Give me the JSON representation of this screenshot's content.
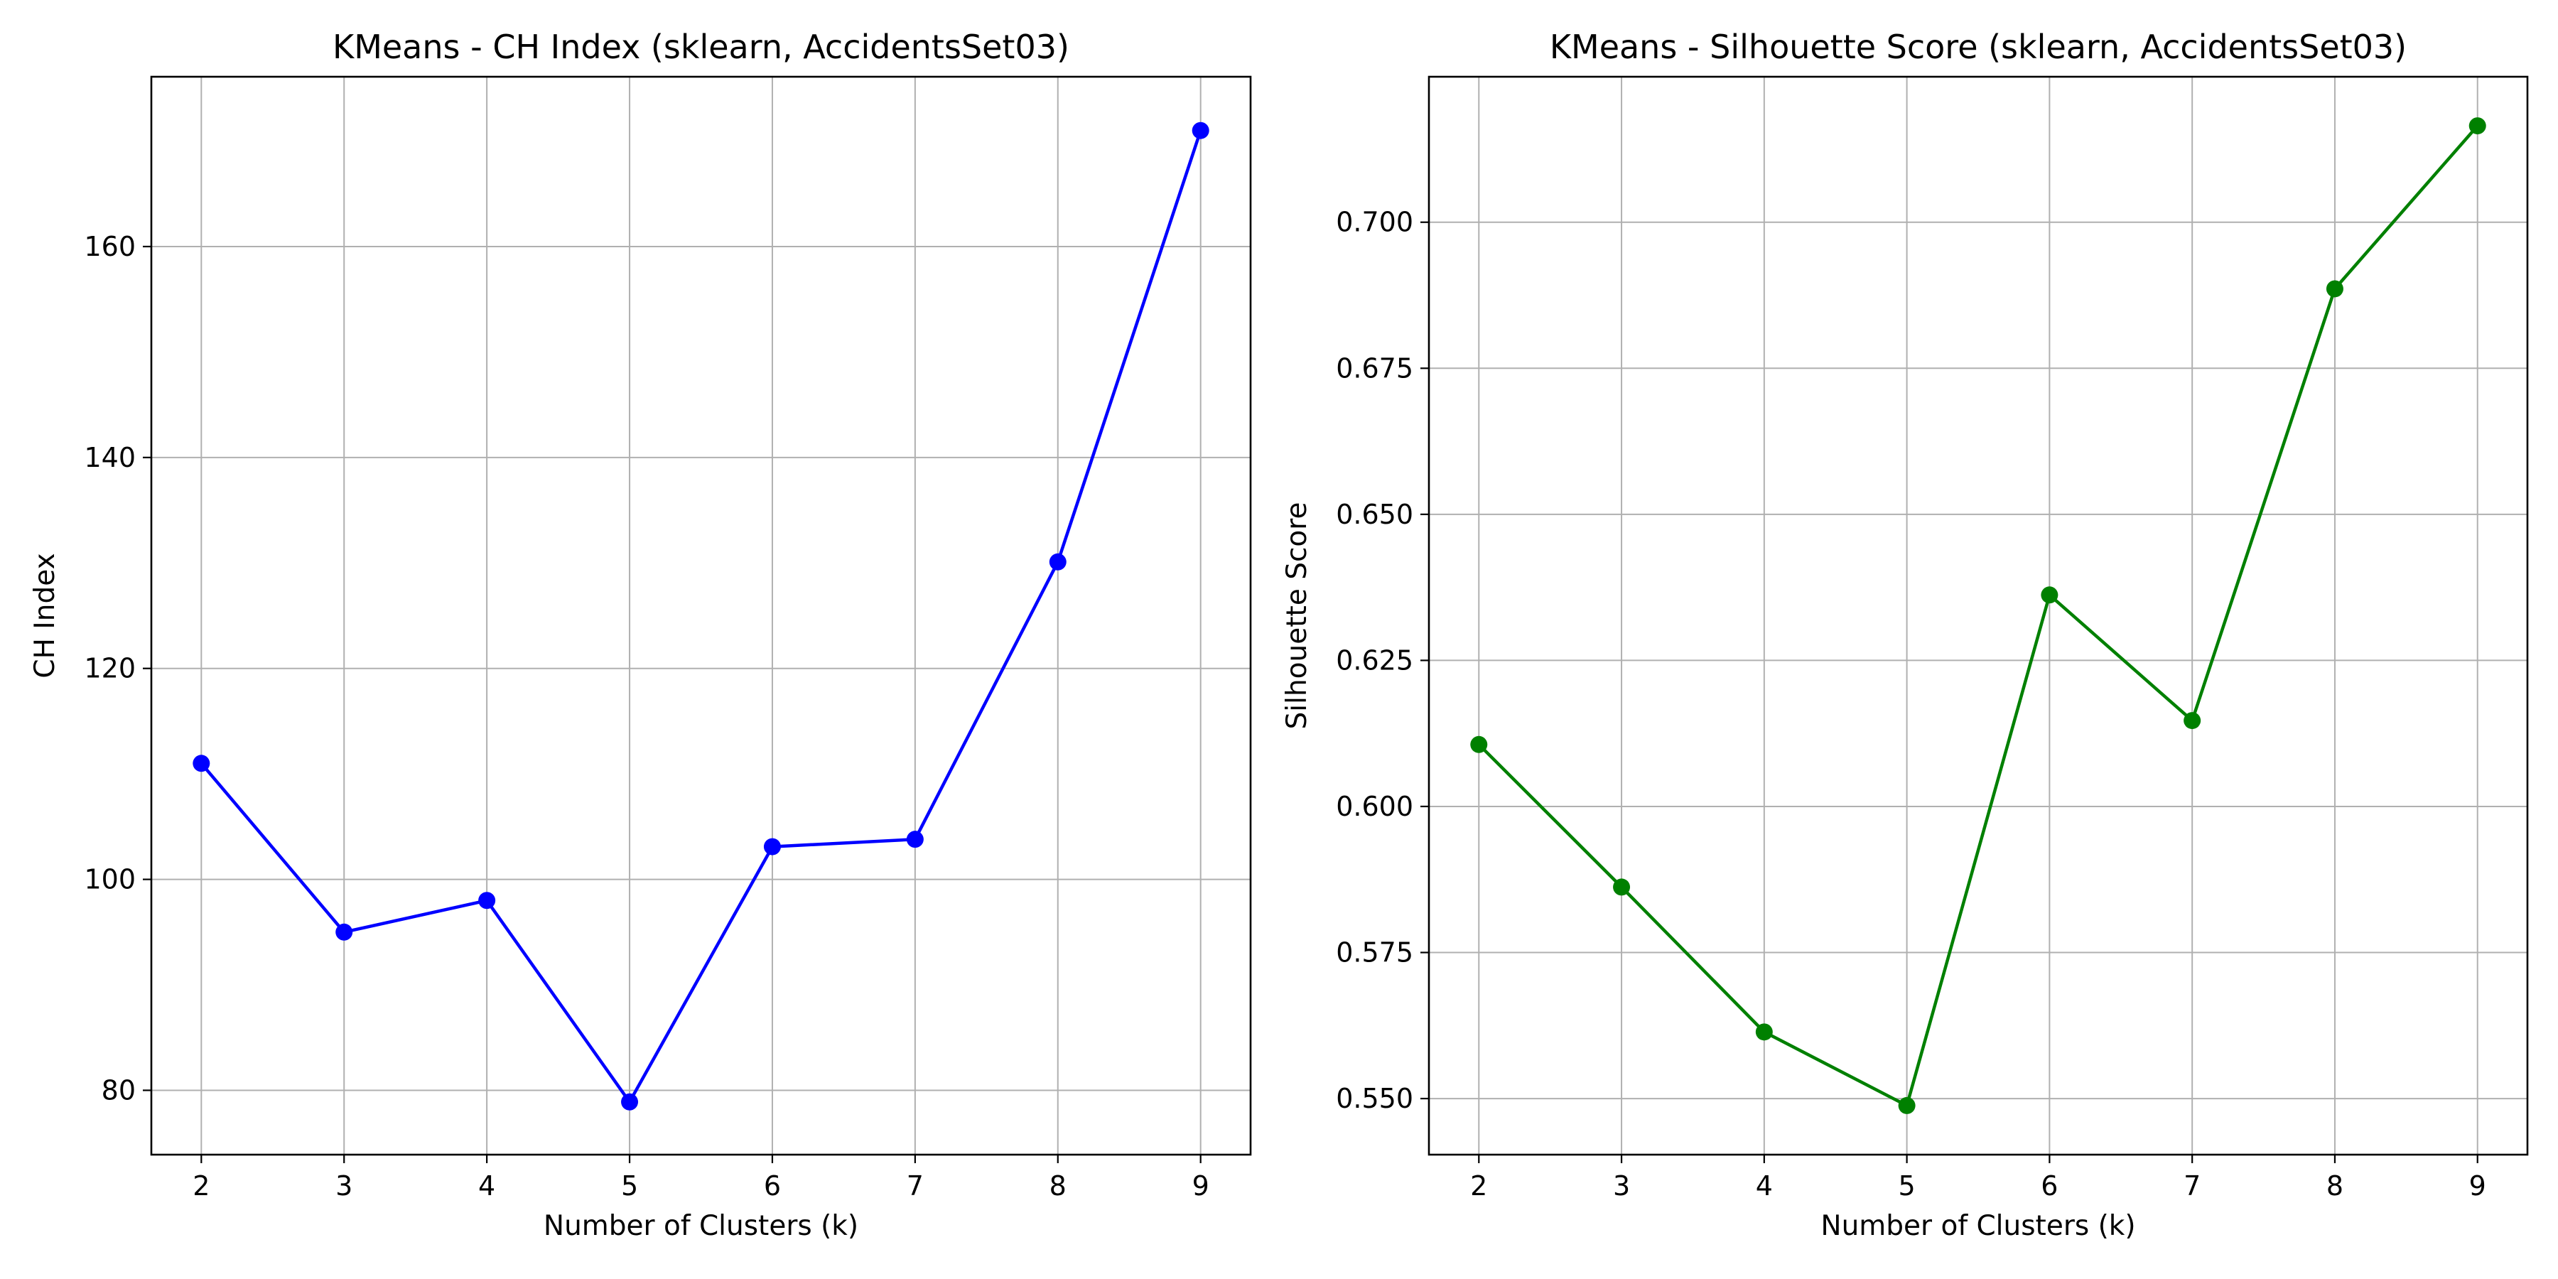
{
  "figure": {
    "background": "#ffffff",
    "grid_color": "#b0b0b0",
    "axis_color": "#000000"
  },
  "chart_data": [
    {
      "type": "line",
      "title": "KMeans - CH Index (sklearn, AccidentsSet03)",
      "xlabel": "Number of Clusters (k)",
      "ylabel": "CH Index",
      "x": [
        2,
        3,
        4,
        5,
        6,
        7,
        8,
        9
      ],
      "series": [
        {
          "values": [
            111.0,
            95.0,
            98.0,
            78.9,
            103.1,
            103.8,
            130.1,
            171.0
          ],
          "color": "#0000ff",
          "marker": "circle"
        }
      ],
      "xlim": [
        1.65,
        9.35
      ],
      "ylim": [
        73.9,
        176.1
      ],
      "xticks": [
        2,
        3,
        4,
        5,
        6,
        7,
        8,
        9
      ],
      "yticks": [
        80,
        100,
        120,
        140,
        160
      ],
      "ytick_labels": [
        "80",
        "100",
        "120",
        "140",
        "160"
      ],
      "grid": true,
      "legend": "none"
    },
    {
      "type": "line",
      "title": "KMeans - Silhouette Score (sklearn, AccidentsSet03)",
      "xlabel": "Number of Clusters (k)",
      "ylabel": "Silhouette Score",
      "x": [
        2,
        3,
        4,
        5,
        6,
        7,
        8,
        9
      ],
      "series": [
        {
          "values": [
            0.6106,
            0.5862,
            0.5614,
            0.5488,
            0.6362,
            0.6147,
            0.6886,
            0.7165
          ],
          "color": "#008000",
          "marker": "circle"
        }
      ],
      "xlim": [
        1.65,
        9.35
      ],
      "ylim": [
        0.5404,
        0.7249
      ],
      "xticks": [
        2,
        3,
        4,
        5,
        6,
        7,
        8,
        9
      ],
      "yticks": [
        0.55,
        0.575,
        0.6,
        0.625,
        0.65,
        0.675,
        0.7
      ],
      "ytick_labels": [
        "0.550",
        "0.575",
        "0.600",
        "0.625",
        "0.650",
        "0.675",
        "0.700"
      ],
      "grid": true,
      "legend": "none"
    }
  ]
}
